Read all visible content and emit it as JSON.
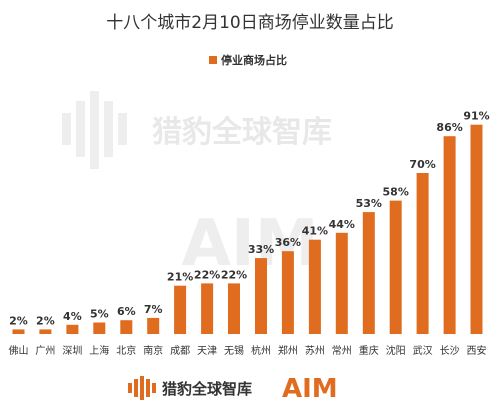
{
  "chart_data": {
    "type": "bar",
    "title": "十八个城市2月10日商场停业数量占比",
    "xlabel": "",
    "ylabel": "",
    "ylim": [
      0,
      100
    ],
    "grid": false,
    "legend_position": "top-center",
    "categories": [
      "佛山",
      "广州",
      "深圳",
      "上海",
      "北京",
      "南京",
      "成都",
      "天津",
      "无锡",
      "杭州",
      "郑州",
      "苏州",
      "常州",
      "重庆",
      "沈阳",
      "武汉",
      "长沙",
      "西安"
    ],
    "series": [
      {
        "name": "停业商场占比",
        "color": "#e06c1f",
        "values": [
          2,
          2,
          4,
          5,
          6,
          7,
          21,
          22,
          22,
          33,
          36,
          41,
          44,
          53,
          58,
          70,
          86,
          91
        ],
        "labels": [
          "2%",
          "2%",
          "4%",
          "5%",
          "6%",
          "7%",
          "21%",
          "22%",
          "22%",
          "33%",
          "36%",
          "41%",
          "44%",
          "53%",
          "58%",
          "70%",
          "86%",
          "91%"
        ]
      }
    ]
  },
  "watermark": {
    "text": "猎豹全球智库",
    "logo_text": "AIM"
  },
  "footer": {
    "brand_text": "猎豹全球智库",
    "logo_text": "AIM",
    "brand_icon": "cheetah-bars-icon",
    "accent_color": "#e06c1f"
  }
}
